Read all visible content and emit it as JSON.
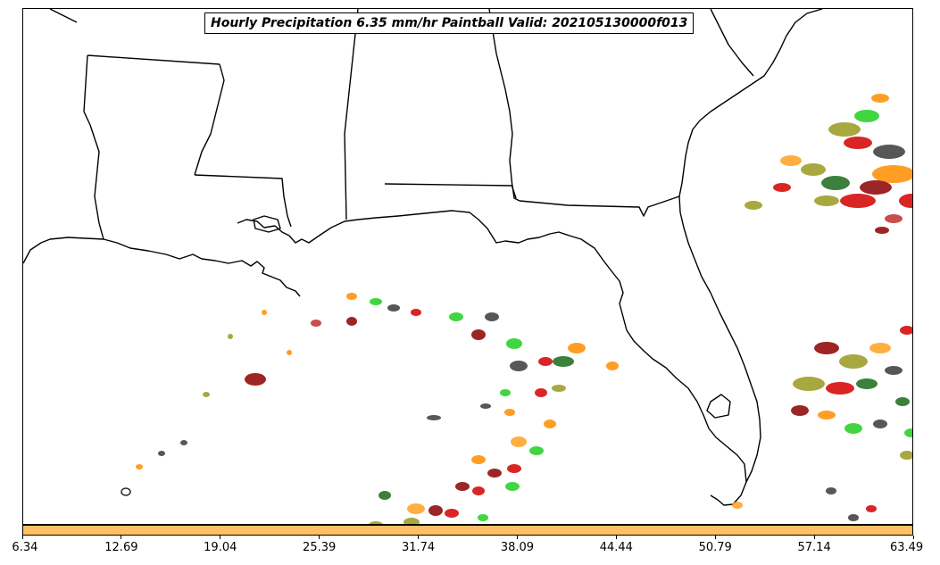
{
  "title": "Hourly Precipitation 6.35 mm/hr Paintball Valid: 202105130000f013",
  "colorbar": {
    "color": "#ffbf66",
    "ticks": [
      "6.34",
      "12.69",
      "19.04",
      "25.39",
      "31.74",
      "38.09",
      "44.44",
      "50.79",
      "57.14",
      "63.49"
    ]
  },
  "ensemble_colors": [
    "#d40000",
    "#00a800",
    "#3a3a3a",
    "#ff8c00",
    "#8b0000",
    "#1a6b1a",
    "#9a9a20",
    "#ffa020",
    "#20d020",
    "#c03030"
  ]
}
